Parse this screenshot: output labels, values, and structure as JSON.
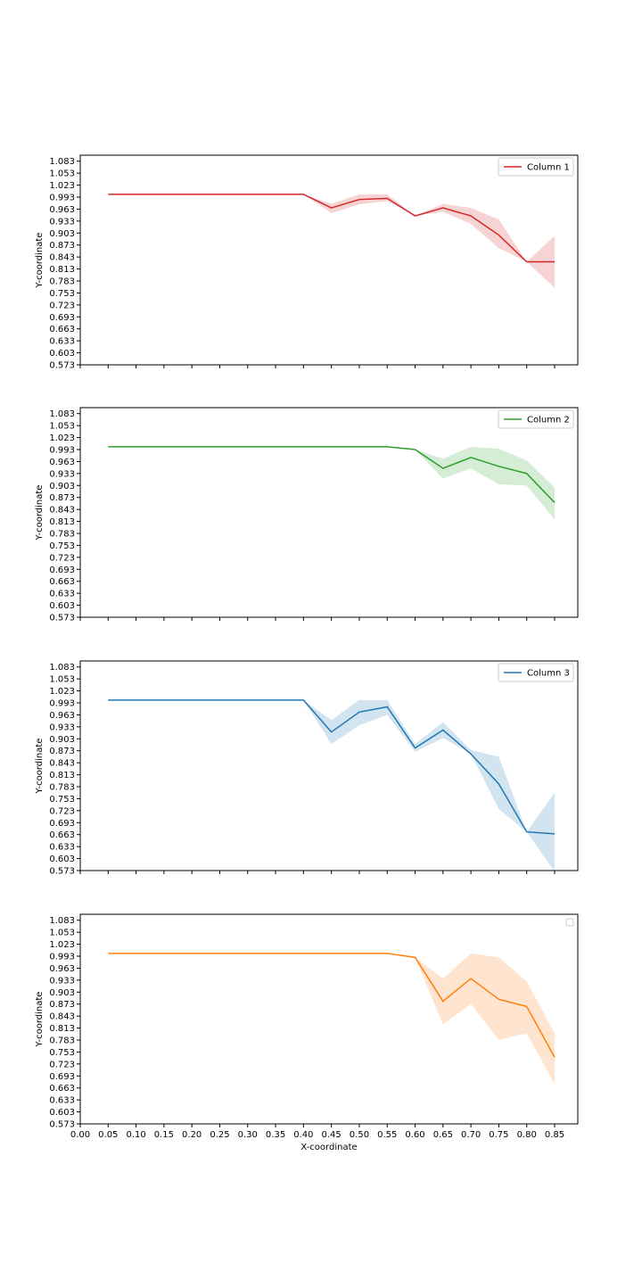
{
  "chart_data": [
    {
      "type": "line",
      "ylabel": "Y-coordinate",
      "xlabel": "",
      "show_x_tick_labels": false,
      "legend": "top-right",
      "ylim": [
        0.573,
        1.098
      ],
      "xlim": [
        0.0,
        0.9
      ],
      "yticks": [
        "0.573",
        "0.603",
        "0.633",
        "0.663",
        "0.693",
        "0.723",
        "0.753",
        "0.783",
        "0.813",
        "0.843",
        "0.873",
        "0.903",
        "0.933",
        "0.963",
        "0.993",
        "1.023",
        "1.053",
        "1.083"
      ],
      "series": [
        {
          "name": "Column 1",
          "color": "#d62728",
          "x": [
            0.05,
            0.1,
            0.15,
            0.2,
            0.25,
            0.3,
            0.35,
            0.4,
            0.45,
            0.5,
            0.55,
            0.6,
            0.65,
            0.7,
            0.75,
            0.8,
            0.85
          ],
          "y": [
            1.0,
            1.0,
            1.0,
            1.0,
            1.0,
            1.0,
            1.0,
            1.0,
            0.966,
            0.987,
            0.99,
            0.946,
            0.966,
            0.946,
            0.898,
            0.831,
            0.831
          ],
          "band_low": [
            1.0,
            1.0,
            1.0,
            1.0,
            1.0,
            1.0,
            1.0,
            1.0,
            0.953,
            0.975,
            0.983,
            0.946,
            0.956,
            0.926,
            0.865,
            0.831,
            0.766
          ],
          "band_high": [
            1.0,
            1.0,
            1.0,
            1.0,
            1.0,
            1.0,
            1.0,
            1.0,
            0.976,
            1.0,
            1.0,
            0.946,
            0.976,
            0.966,
            0.937,
            0.831,
            0.896
          ]
        }
      ]
    },
    {
      "type": "line",
      "ylabel": "Y-coordinate",
      "xlabel": "",
      "show_x_tick_labels": false,
      "legend": "top-right",
      "ylim": [
        0.573,
        1.098
      ],
      "xlim": [
        0.0,
        0.9
      ],
      "yticks": [
        "0.573",
        "0.603",
        "0.633",
        "0.663",
        "0.693",
        "0.723",
        "0.753",
        "0.783",
        "0.813",
        "0.843",
        "0.873",
        "0.903",
        "0.933",
        "0.963",
        "0.993",
        "1.023",
        "1.053",
        "1.083"
      ],
      "series": [
        {
          "name": "Column 2",
          "color": "#2ca02c",
          "x": [
            0.05,
            0.1,
            0.15,
            0.2,
            0.25,
            0.3,
            0.35,
            0.4,
            0.45,
            0.5,
            0.55,
            0.6,
            0.65,
            0.7,
            0.75,
            0.8,
            0.85
          ],
          "y": [
            1.0,
            1.0,
            1.0,
            1.0,
            1.0,
            1.0,
            1.0,
            1.0,
            1.0,
            1.0,
            1.0,
            0.993,
            0.946,
            0.973,
            0.951,
            0.933,
            0.86
          ],
          "band_low": [
            1.0,
            1.0,
            1.0,
            1.0,
            1.0,
            1.0,
            1.0,
            1.0,
            1.0,
            1.0,
            1.0,
            0.993,
            0.92,
            0.946,
            0.906,
            0.903,
            0.818
          ],
          "band_high": [
            1.0,
            1.0,
            1.0,
            1.0,
            1.0,
            1.0,
            1.0,
            1.0,
            1.0,
            1.0,
            1.0,
            0.993,
            0.97,
            1.0,
            0.995,
            0.966,
            0.898
          ]
        }
      ]
    },
    {
      "type": "line",
      "ylabel": "Y-coordinate",
      "xlabel": "",
      "show_x_tick_labels": false,
      "legend": "top-right",
      "ylim": [
        0.573,
        1.098
      ],
      "xlim": [
        0.0,
        0.9
      ],
      "yticks": [
        "0.573",
        "0.603",
        "0.633",
        "0.663",
        "0.693",
        "0.723",
        "0.753",
        "0.783",
        "0.813",
        "0.843",
        "0.873",
        "0.903",
        "0.933",
        "0.963",
        "0.993",
        "1.023",
        "1.053",
        "1.083"
      ],
      "series": [
        {
          "name": "Column 3",
          "color": "#1f77b4",
          "x": [
            0.05,
            0.1,
            0.15,
            0.2,
            0.25,
            0.3,
            0.35,
            0.4,
            0.45,
            0.5,
            0.55,
            0.6,
            0.65,
            0.7,
            0.75,
            0.8,
            0.85
          ],
          "y": [
            1.0,
            1.0,
            1.0,
            1.0,
            1.0,
            1.0,
            1.0,
            1.0,
            0.92,
            0.97,
            0.983,
            0.88,
            0.925,
            0.865,
            0.79,
            0.67,
            0.665
          ],
          "band_low": [
            1.0,
            1.0,
            1.0,
            1.0,
            1.0,
            1.0,
            1.0,
            1.0,
            0.89,
            0.937,
            0.963,
            0.87,
            0.905,
            0.865,
            0.727,
            0.67,
            0.57
          ],
          "band_high": [
            1.0,
            1.0,
            1.0,
            1.0,
            1.0,
            1.0,
            1.0,
            1.0,
            0.95,
            1.0,
            1.0,
            0.89,
            0.945,
            0.875,
            0.858,
            0.67,
            0.768
          ]
        }
      ]
    },
    {
      "type": "line",
      "ylabel": "Y-coordinate",
      "xlabel": "X-coordinate",
      "show_x_tick_labels": true,
      "legend": "top-right (empty)",
      "ylim": [
        0.573,
        1.098
      ],
      "xlim": [
        0.0,
        0.9
      ],
      "xticks": [
        "0.00",
        "0.05",
        "0.10",
        "0.15",
        "0.20",
        "0.25",
        "0.30",
        "0.35",
        "0.40",
        "0.45",
        "0.50",
        "0.55",
        "0.60",
        "0.65",
        "0.70",
        "0.75",
        "0.80",
        "0.85"
      ],
      "yticks": [
        "0.573",
        "0.603",
        "0.633",
        "0.663",
        "0.693",
        "0.723",
        "0.753",
        "0.783",
        "0.813",
        "0.843",
        "0.873",
        "0.903",
        "0.933",
        "0.963",
        "0.993",
        "1.023",
        "1.053",
        "1.083"
      ],
      "series": [
        {
          "color": "#ff7f0e",
          "x": [
            0.05,
            0.1,
            0.15,
            0.2,
            0.25,
            0.3,
            0.35,
            0.4,
            0.45,
            0.5,
            0.55,
            0.6,
            0.65,
            0.7,
            0.75,
            0.8,
            0.85
          ],
          "y": [
            1.0,
            1.0,
            1.0,
            1.0,
            1.0,
            1.0,
            1.0,
            1.0,
            1.0,
            1.0,
            1.0,
            0.99,
            0.88,
            0.937,
            0.885,
            0.867,
            0.74
          ],
          "band_low": [
            1.0,
            1.0,
            1.0,
            1.0,
            1.0,
            1.0,
            1.0,
            1.0,
            1.0,
            1.0,
            1.0,
            0.99,
            0.822,
            0.873,
            0.783,
            0.8,
            0.673
          ],
          "band_high": [
            1.0,
            1.0,
            1.0,
            1.0,
            1.0,
            1.0,
            1.0,
            1.0,
            1.0,
            1.0,
            1.0,
            0.99,
            0.937,
            1.0,
            0.99,
            0.93,
            0.8
          ]
        }
      ]
    }
  ]
}
